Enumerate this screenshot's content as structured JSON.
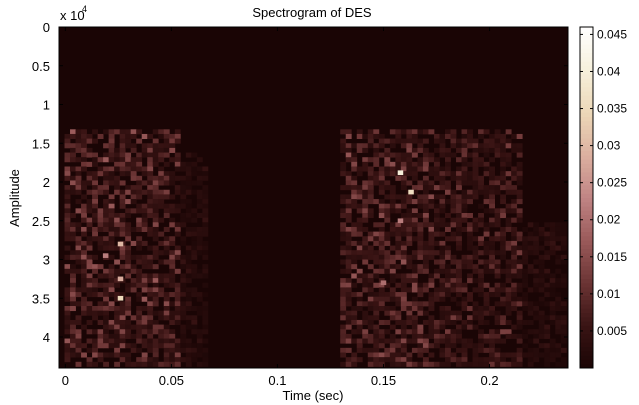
{
  "chart_data": {
    "type": "heatmap",
    "title": "Spectrogram of DES",
    "xlabel": "Time (sec)",
    "ylabel": "Amplitude",
    "y_multiplier": "x 10",
    "y_multiplier_exp": "4",
    "xlim": [
      -0.003,
      0.237
    ],
    "ylim": [
      0,
      4.4
    ],
    "x_ticks": [
      {
        "value": 0,
        "label": "0"
      },
      {
        "value": 0.05,
        "label": "0.05"
      },
      {
        "value": 0.1,
        "label": "0.1"
      },
      {
        "value": 0.15,
        "label": "0.15"
      },
      {
        "value": 0.2,
        "label": "0.2"
      }
    ],
    "y_ticks": [
      {
        "value": 0,
        "label": "0"
      },
      {
        "value": 0.5,
        "label": "0.5"
      },
      {
        "value": 1,
        "label": "1"
      },
      {
        "value": 1.5,
        "label": "1.5"
      },
      {
        "value": 2,
        "label": "2"
      },
      {
        "value": 2.5,
        "label": "2.5"
      },
      {
        "value": 3,
        "label": "3"
      },
      {
        "value": 3.5,
        "label": "3.5"
      },
      {
        "value": 4,
        "label": "4"
      }
    ],
    "colorbar": {
      "min": 0,
      "max": 0.046,
      "ticks": [
        {
          "value": 0.005,
          "label": "0.005"
        },
        {
          "value": 0.01,
          "label": "0.01"
        },
        {
          "value": 0.015,
          "label": "0.015"
        },
        {
          "value": 0.02,
          "label": "0.02"
        },
        {
          "value": 0.025,
          "label": "0.025"
        },
        {
          "value": 0.03,
          "label": "0.03"
        },
        {
          "value": 0.035,
          "label": "0.035"
        },
        {
          "value": 0.04,
          "label": "0.04"
        },
        {
          "value": 0.045,
          "label": "0.045"
        }
      ],
      "colors": [
        "#1a0505",
        "#3a1414",
        "#6b3434",
        "#9a5a5a",
        "#c08484",
        "#dcb0a0",
        "#ecd8b8",
        "#f6f0dc",
        "#ffffff"
      ]
    },
    "energy_regions": [
      {
        "t_start": 0.0,
        "t_end": 0.055,
        "f_start": 1.3,
        "f_end": 4.4,
        "level": 0.009
      },
      {
        "t_start": 0.055,
        "t_end": 0.068,
        "f_start": 1.6,
        "f_end": 4.4,
        "level": 0.003
      },
      {
        "t_start": 0.13,
        "t_end": 0.175,
        "f_start": 1.3,
        "f_end": 4.4,
        "level": 0.009
      },
      {
        "t_start": 0.175,
        "t_end": 0.215,
        "f_start": 1.3,
        "f_end": 4.4,
        "level": 0.007
      },
      {
        "t_start": 0.215,
        "t_end": 0.237,
        "f_start": 2.5,
        "f_end": 4.4,
        "level": 0.003
      }
    ],
    "peaks": [
      {
        "t": 0.026,
        "f": 2.8,
        "value": 0.03
      },
      {
        "t": 0.026,
        "f": 3.5,
        "value": 0.035
      },
      {
        "t": 0.026,
        "f": 3.25,
        "value": 0.028
      },
      {
        "t": 0.019,
        "f": 2.95,
        "value": 0.022
      },
      {
        "t": 0.158,
        "f": 1.88,
        "value": 0.04
      },
      {
        "t": 0.163,
        "f": 2.13,
        "value": 0.036
      },
      {
        "t": 0.158,
        "f": 2.5,
        "value": 0.022
      },
      {
        "t": 0.15,
        "f": 3.3,
        "value": 0.02
      }
    ],
    "grid": false
  }
}
